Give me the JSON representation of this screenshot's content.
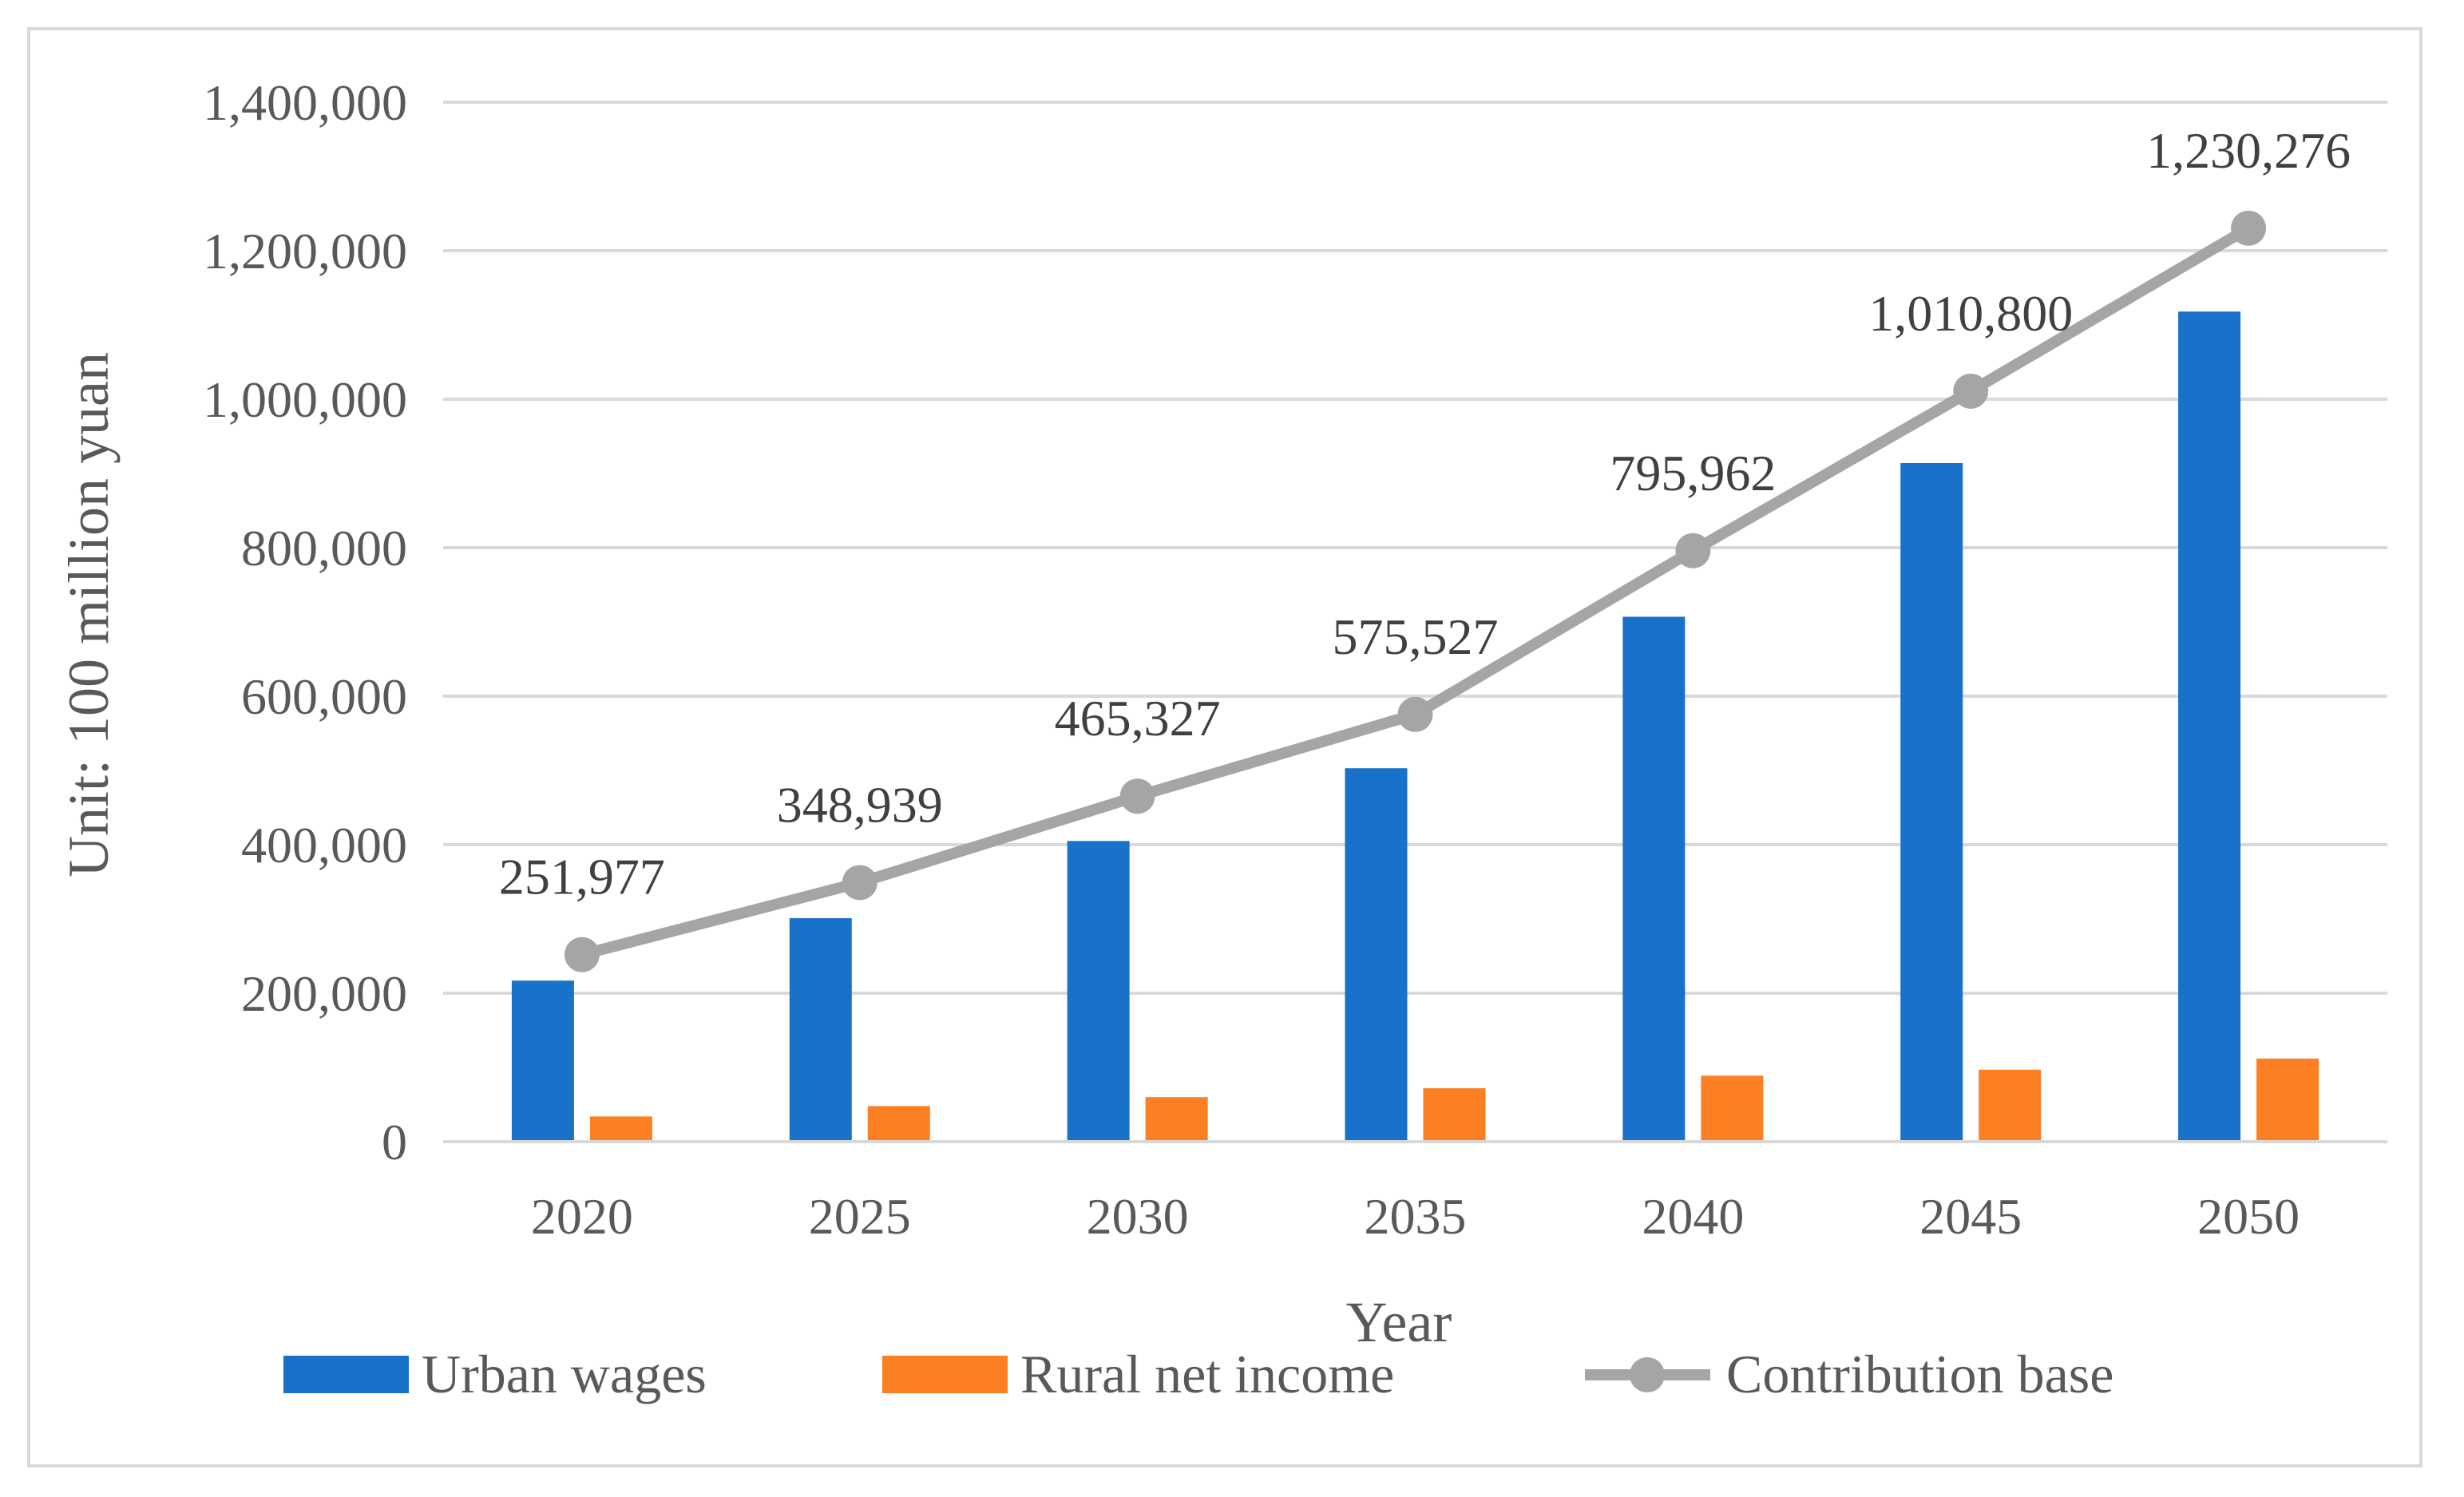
{
  "chart_data": {
    "type": "bar",
    "title": "",
    "xlabel": "Year",
    "ylabel": "Unit: 100 million yuan",
    "ylim": [
      0,
      1400000
    ],
    "yticks": [
      0,
      200000,
      400000,
      600000,
      800000,
      1000000,
      1200000,
      1400000
    ],
    "ytick_labels": [
      "0",
      "200,000",
      "400,000",
      "600,000",
      "800,000",
      "1,000,000",
      "1,200,000",
      "1,400,000"
    ],
    "categories": [
      "2020",
      "2025",
      "2030",
      "2035",
      "2040",
      "2045",
      "2050"
    ],
    "grid": true,
    "legend_position": "bottom",
    "series": [
      {
        "name": "Urban wages",
        "type": "bar",
        "color": "#1872C9",
        "values": [
          217000,
          301000,
          405000,
          503000,
          707000,
          914000,
          1118000
        ]
      },
      {
        "name": "Rural net income",
        "type": "bar",
        "color": "#FD7F24",
        "values": [
          34000,
          48000,
          60000,
          72000,
          89000,
          97000,
          112000
        ]
      },
      {
        "name": "Contribution base",
        "type": "line",
        "color": "#A5A5A5",
        "values": [
          251977,
          348939,
          465327,
          575527,
          795962,
          1010800,
          1230276
        ],
        "labels": [
          "251,977",
          "348,939",
          "465,327",
          "575,527",
          "795,962",
          "1,010,800",
          "1,230,276"
        ]
      }
    ]
  }
}
